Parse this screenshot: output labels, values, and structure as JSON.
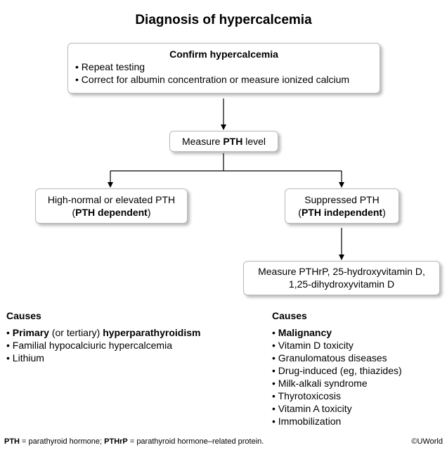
{
  "title": "Diagnosis of hypercalcemia",
  "box_confirm": {
    "heading": "Confirm hypercalcemia",
    "bullets": [
      "Repeat testing",
      "Correct for albumin concentration or measure ionized calcium"
    ]
  },
  "box_measure_pth": {
    "prefix": "Measure ",
    "bold": "PTH",
    "suffix": " level"
  },
  "box_pth_dependent": {
    "line1": "High-normal or elevated PTH",
    "open": "(",
    "bold": "PTH dependent",
    "close": ")"
  },
  "box_pth_independent": {
    "line1": "Suppressed PTH",
    "open": "(",
    "bold": "PTH independent",
    "close": ")"
  },
  "box_measure_pthrp": {
    "line1": "Measure PTHrP, 25-hydroxyvitamin D,",
    "line2": "1,25-dihydroxyvitamin D"
  },
  "causes_left": {
    "heading": "Causes",
    "item1": {
      "bold1": "Primary",
      "normal": " (or tertiary) ",
      "bold2": "hyperparathyroidism"
    },
    "item2": "Familial hypocalciuric hypercalcemia",
    "item3": "Lithium"
  },
  "causes_right": {
    "heading": "Causes",
    "first_bold": "Malignancy",
    "items": [
      "Vitamin D toxicity",
      "Granulomatous diseases",
      "Drug-induced (eg, thiazides)",
      "Milk-alkali syndrome",
      "Thyrotoxicosis",
      "Vitamin A toxicity",
      "Immobilization"
    ]
  },
  "footer": {
    "pth_abbr": "PTH",
    "pth_def": " = parathyroid hormone; ",
    "pthrp_abbr": "PTHrP",
    "pthrp_def": " = parathyroid hormone–related protein."
  },
  "copyright": "©UWorld",
  "colors": {
    "border": "#b9b9b9",
    "line": "#000000",
    "background": "#ffffff"
  }
}
